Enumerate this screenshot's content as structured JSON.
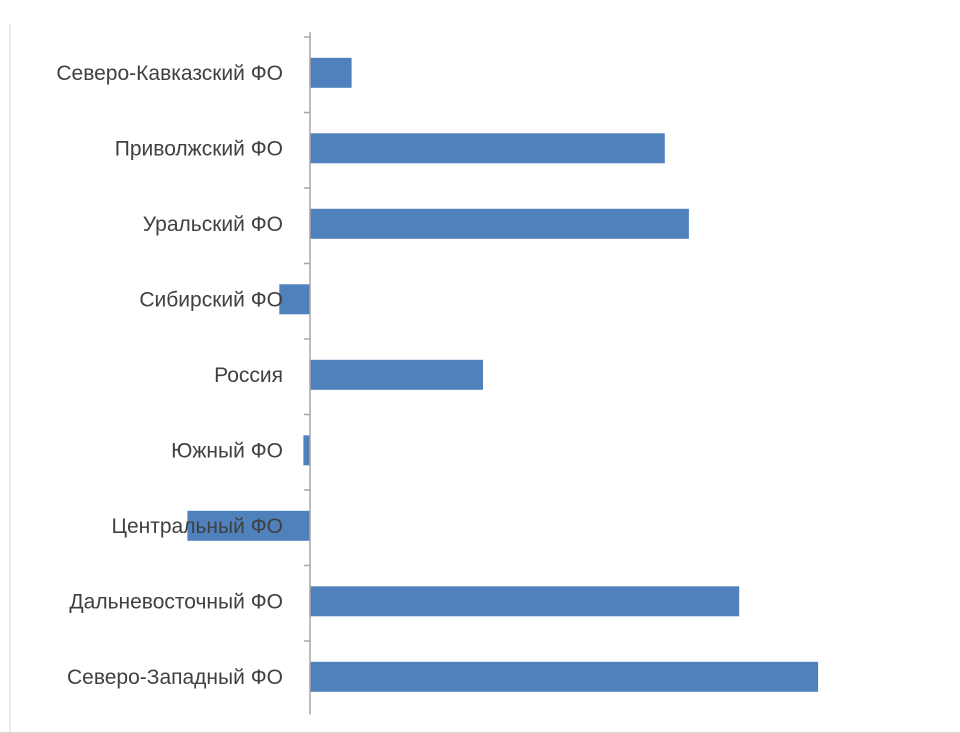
{
  "chart_data": {
    "type": "bar",
    "orientation": "horizontal",
    "title": "",
    "xlabel": "",
    "ylabel": "",
    "grid": false,
    "legend": "none",
    "xlim": [
      -5.5,
      23.5
    ],
    "categories": [
      "Северо-Кавказский ФО",
      "Приволжский ФО",
      "Уральский ФО",
      "Сибирский ФО",
      "Россия",
      "Южный ФО",
      "Центральный ФО",
      "Дальневосточный ФО",
      "Северо-Западный ФО"
    ],
    "values": [
      1.9,
      16.2,
      17.3,
      -1.4,
      7.9,
      -0.3,
      -5.6,
      19.6,
      23.2
    ],
    "colors": {
      "bar": "#4f81bd",
      "axis": "#a6a6a6",
      "label": "#404040",
      "frame": "#d9d9d9"
    }
  }
}
